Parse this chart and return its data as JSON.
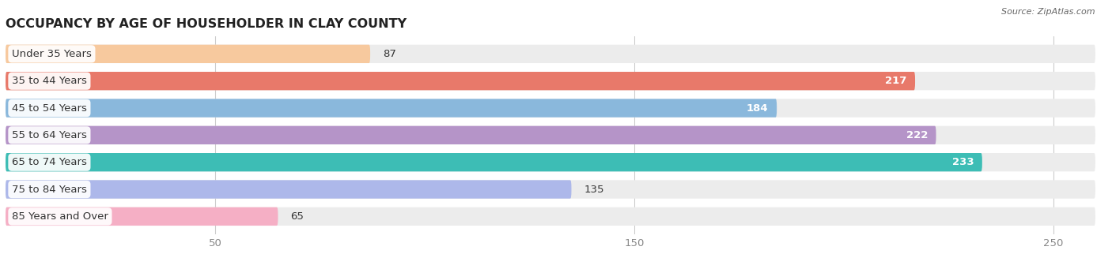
{
  "title": "OCCUPANCY BY AGE OF HOUSEHOLDER IN CLAY COUNTY",
  "source": "Source: ZipAtlas.com",
  "categories": [
    "Under 35 Years",
    "35 to 44 Years",
    "45 to 54 Years",
    "55 to 64 Years",
    "65 to 74 Years",
    "75 to 84 Years",
    "85 Years and Over"
  ],
  "values": [
    87,
    217,
    184,
    222,
    233,
    135,
    65
  ],
  "bar_colors": [
    "#f7c99e",
    "#e8796a",
    "#8ab8dc",
    "#b594c8",
    "#3dbdb5",
    "#adb8ea",
    "#f5afc5"
  ],
  "bar_bg_color": "#ececec",
  "value_label_threshold": 150,
  "xlim": [
    0,
    260
  ],
  "xticks": [
    50,
    150,
    250
  ],
  "title_fontsize": 11.5,
  "label_fontsize": 9.5,
  "value_fontsize": 9.5,
  "bar_height": 0.68,
  "bar_gap": 1.0,
  "background_color": "#ffffff",
  "label_color": "#333333",
  "source_color": "#666666",
  "grid_color": "#cccccc",
  "tick_color": "#888888"
}
